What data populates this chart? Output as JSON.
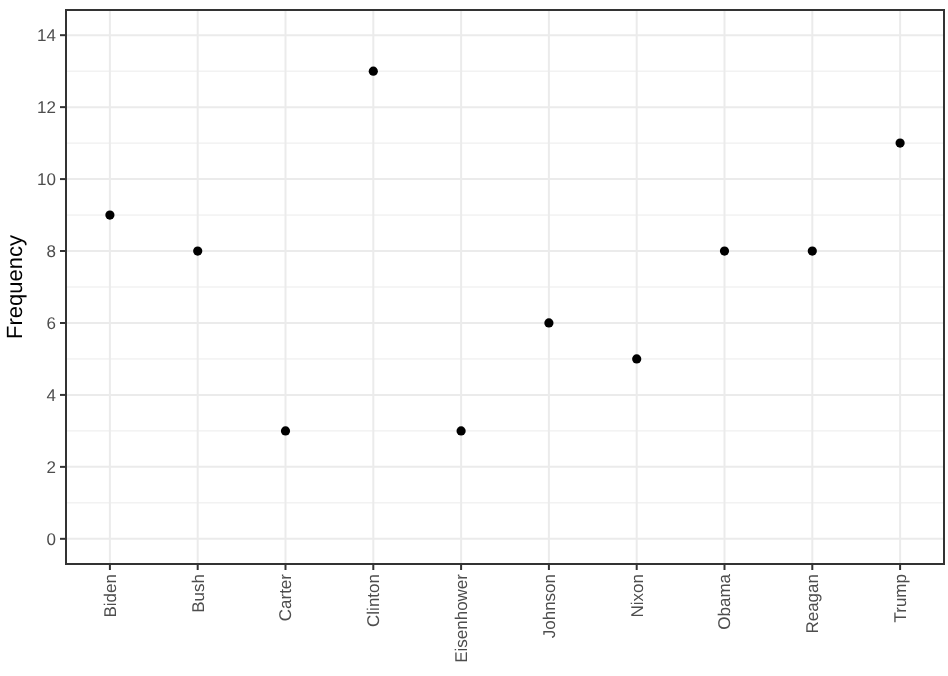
{
  "chart_data": {
    "type": "scatter",
    "ylabel": "Frequency",
    "categories": [
      "Biden",
      "Bush",
      "Carter",
      "Clinton",
      "Eisenhower",
      "Johnson",
      "Nixon",
      "Obama",
      "Reagan",
      "Trump"
    ],
    "values": [
      9,
      8,
      3,
      13,
      3,
      6,
      5,
      8,
      8,
      11
    ],
    "color": "#000000",
    "marker": "circle",
    "ylim": [
      -0.7,
      14.7
    ],
    "yticks": [
      0,
      2,
      4,
      6,
      8,
      10,
      12,
      14
    ],
    "grid": true
  }
}
